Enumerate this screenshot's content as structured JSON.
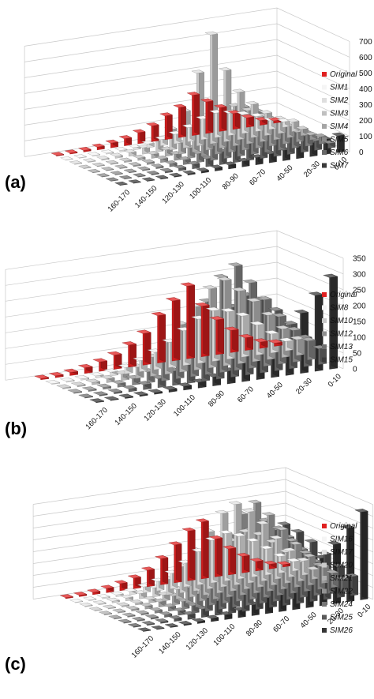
{
  "chart_data": [
    {
      "panel_label": "(a)",
      "type": "bar",
      "style": "3d-column",
      "categories": [
        "0-10",
        "10-20",
        "20-30",
        "30-40",
        "40-50",
        "50-60",
        "60-70",
        "70-80",
        "80-90",
        "90-100",
        "100-110",
        "110-120",
        "120-130",
        "130-140",
        "140-150",
        "150-160",
        "160-170"
      ],
      "category_labels": [
        "160-170",
        "140-150",
        "120-130",
        "100-110",
        "80-90",
        "60-70",
        "40-50",
        "20-30",
        "0-10"
      ],
      "ylim": [
        0,
        700
      ],
      "yticks": [
        0,
        100,
        200,
        300,
        400,
        500,
        600,
        700
      ],
      "legend_position": "right",
      "colors": {
        "Original": "#e02020",
        "SIM1": "#f5f5f5",
        "SIM2": "#dedede",
        "SIM3": "#c0c0c0",
        "SIM4": "#a5a5a5",
        "SIM5": "#8a8a8a",
        "SIM6": "#6a6a6a",
        "SIM7": "#3a3a3a"
      },
      "series": [
        {
          "name": "Original",
          "values": [
            15,
            30,
            60,
            100,
            150,
            200,
            255,
            190,
            150,
            100,
            70,
            45,
            30,
            18,
            10,
            6,
            4
          ]
        },
        {
          "name": "SIM1",
          "values": [
            35,
            55,
            95,
            120,
            140,
            155,
            130,
            90,
            60,
            40,
            25,
            15,
            10,
            6,
            4,
            3,
            2
          ]
        },
        {
          "name": "SIM2",
          "values": [
            60,
            90,
            140,
            210,
            300,
            450,
            690,
            460,
            230,
            130,
            70,
            40,
            22,
            12,
            7,
            4,
            3
          ]
        },
        {
          "name": "SIM3",
          "values": [
            40,
            70,
            110,
            160,
            210,
            250,
            220,
            160,
            110,
            70,
            40,
            25,
            14,
            8,
            5,
            3,
            2
          ]
        },
        {
          "name": "SIM4",
          "values": [
            30,
            60,
            110,
            170,
            230,
            270,
            240,
            170,
            110,
            65,
            38,
            22,
            12,
            7,
            4,
            3,
            2
          ]
        },
        {
          "name": "SIM5",
          "values": [
            45,
            80,
            130,
            180,
            220,
            240,
            200,
            140,
            90,
            55,
            30,
            18,
            10,
            6,
            4,
            3,
            2
          ]
        },
        {
          "name": "SIM6",
          "values": [
            30,
            60,
            100,
            150,
            200,
            220,
            190,
            130,
            80,
            50,
            28,
            16,
            9,
            5,
            3,
            2,
            2
          ]
        },
        {
          "name": "SIM7",
          "values": [
            105,
            95,
            85,
            75,
            65,
            55,
            45,
            35,
            25,
            18,
            12,
            8,
            5,
            4,
            3,
            2,
            2
          ]
        }
      ]
    },
    {
      "panel_label": "(b)",
      "type": "bar",
      "style": "3d-column",
      "categories": [
        "0-10",
        "10-20",
        "20-30",
        "30-40",
        "40-50",
        "50-60",
        "60-70",
        "70-80",
        "80-90",
        "90-100",
        "100-110",
        "110-120",
        "120-130",
        "130-140",
        "140-150",
        "150-160",
        "160-170"
      ],
      "category_labels": [
        "160-170",
        "140-150",
        "120-130",
        "100-110",
        "80-90",
        "60-70",
        "40-50",
        "20-30",
        "0-10"
      ],
      "ylim": [
        0,
        350
      ],
      "yticks": [
        0,
        50,
        100,
        150,
        200,
        250,
        300,
        350
      ],
      "legend_position": "right",
      "colors": {
        "Original": "#e02020",
        "SIM8": "#f2f2f2",
        "SIM10": "#c8c8c8",
        "SIM12": "#8f8f8f",
        "SIM13": "#6e6e6e",
        "SIM15": "#3a3a3a"
      },
      "series": [
        {
          "name": "Original",
          "values": [
            10,
            20,
            40,
            70,
            110,
            160,
            230,
            190,
            150,
            100,
            70,
            45,
            30,
            18,
            10,
            6,
            4
          ]
        },
        {
          "name": "SIM8",
          "values": [
            30,
            60,
            95,
            130,
            150,
            160,
            140,
            110,
            80,
            55,
            35,
            20,
            12,
            7,
            4,
            3,
            2
          ]
        },
        {
          "name": "SIM10",
          "values": [
            50,
            90,
            140,
            190,
            230,
            270,
            250,
            200,
            150,
            100,
            60,
            35,
            20,
            12,
            7,
            4,
            3
          ]
        },
        {
          "name": "SIM12",
          "values": [
            60,
            100,
            150,
            210,
            270,
            330,
            300,
            230,
            160,
            100,
            60,
            35,
            20,
            11,
            6,
            4,
            3
          ]
        },
        {
          "name": "SIM13",
          "values": [
            50,
            90,
            140,
            190,
            230,
            250,
            220,
            170,
            120,
            80,
            45,
            28,
            16,
            9,
            5,
            3,
            2
          ]
        },
        {
          "name": "SIM15",
          "values": [
            290,
            240,
            190,
            150,
            110,
            80,
            60,
            40,
            28,
            18,
            12,
            8,
            5,
            4,
            3,
            2,
            2
          ]
        }
      ]
    },
    {
      "panel_label": "(c)",
      "type": "bar",
      "style": "3d-column",
      "categories": [
        "0-10",
        "10-20",
        "20-30",
        "30-40",
        "40-50",
        "50-60",
        "60-70",
        "70-80",
        "80-90",
        "90-100",
        "100-110",
        "110-120",
        "120-130",
        "130-140",
        "140-150",
        "150-160",
        "160-170"
      ],
      "category_labels": [
        "160-170",
        "140-150",
        "120-130",
        "100-110",
        "80-90",
        "60-70",
        "40-50",
        "20-30",
        "0-10"
      ],
      "ylim": [
        0,
        400
      ],
      "yticks": [
        0,
        50,
        100,
        150,
        200,
        250,
        300,
        350,
        400
      ],
      "legend_position": "right",
      "colors": {
        "Original": "#e02020",
        "SIM16": "#f5f5f5",
        "SIM17": "#e3e3e3",
        "SIM20": "#cccccc",
        "SIM21": "#b0b0b0",
        "SIM22": "#939393",
        "SIM24": "#777777",
        "SIM25": "#5a5a5a",
        "SIM26": "#353535"
      },
      "series": [
        {
          "name": "Original",
          "values": [
            10,
            20,
            40,
            70,
            110,
            160,
            240,
            210,
            160,
            110,
            70,
            45,
            30,
            18,
            10,
            6,
            4
          ]
        },
        {
          "name": "SIM16",
          "values": [
            40,
            70,
            110,
            150,
            180,
            200,
            180,
            140,
            100,
            65,
            40,
            25,
            14,
            8,
            5,
            3,
            2
          ]
        },
        {
          "name": "SIM17",
          "values": [
            60,
            110,
            170,
            240,
            300,
            340,
            310,
            240,
            170,
            110,
            65,
            38,
            22,
            12,
            7,
            4,
            3
          ]
        },
        {
          "name": "SIM20",
          "values": [
            40,
            80,
            130,
            180,
            220,
            240,
            210,
            160,
            110,
            70,
            40,
            25,
            14,
            8,
            5,
            3,
            2
          ]
        },
        {
          "name": "SIM21",
          "values": [
            70,
            120,
            180,
            250,
            320,
            380,
            340,
            260,
            180,
            110,
            65,
            38,
            22,
            12,
            7,
            4,
            3
          ]
        },
        {
          "name": "SIM22",
          "values": [
            60,
            100,
            160,
            220,
            280,
            320,
            290,
            220,
            150,
            95,
            55,
            32,
            18,
            10,
            6,
            4,
            3
          ]
        },
        {
          "name": "SIM24",
          "values": [
            50,
            90,
            140,
            200,
            260,
            300,
            270,
            210,
            150,
            95,
            55,
            32,
            18,
            10,
            6,
            4,
            3
          ]
        },
        {
          "name": "SIM25",
          "values": [
            80,
            130,
            190,
            250,
            300,
            340,
            300,
            230,
            160,
            100,
            60,
            35,
            20,
            11,
            6,
            4,
            3
          ]
        },
        {
          "name": "SIM26",
          "values": [
            370,
            310,
            250,
            200,
            160,
            120,
            90,
            65,
            45,
            30,
            20,
            13,
            8,
            5,
            3,
            2,
            2
          ]
        }
      ]
    }
  ]
}
